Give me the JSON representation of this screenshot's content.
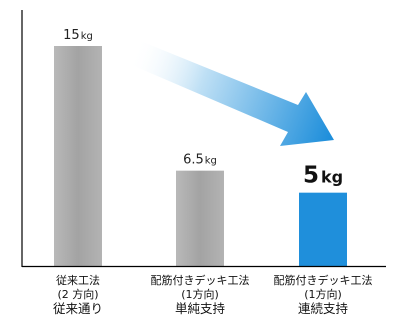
{
  "chart_data": {
    "type": "bar",
    "categories": [
      [
        "従来工法",
        "(2 方向)",
        "従来通り"
      ],
      [
        "配筋付きデッキ工法",
        "(1方向)",
        "単純支持"
      ],
      [
        "配筋付きデッキ工法",
        "(1方向)",
        "連続支持"
      ]
    ],
    "values": [
      15,
      6.5,
      5
    ],
    "data_labels": [
      {
        "num": "15",
        "unit": "kg"
      },
      {
        "num": "6.5",
        "unit": "kg"
      },
      {
        "num": "5",
        "unit": "kg"
      }
    ],
    "colors": [
      "#a6a6a6",
      "#a6a6a6",
      "#1f8fdb"
    ],
    "highlight_index": 2,
    "ylim": [
      0,
      15
    ],
    "grid": false,
    "annotation": "gradient-arrow-from-first-to-last-bar"
  }
}
